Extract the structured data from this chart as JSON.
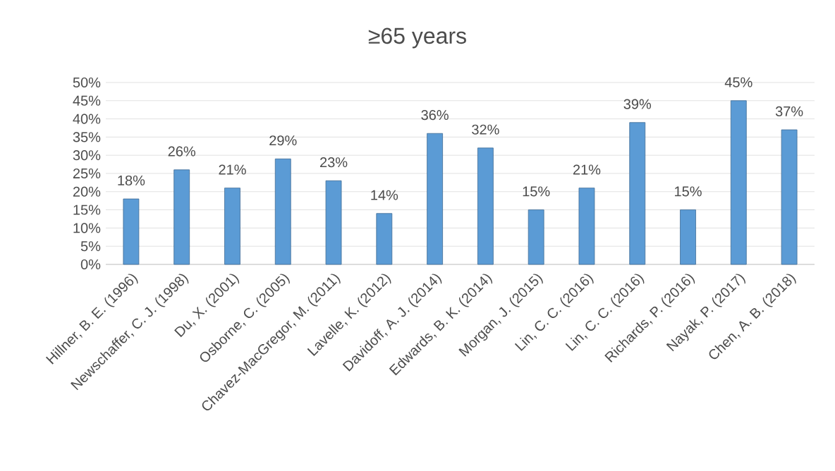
{
  "chart_data": {
    "type": "bar",
    "title": "≥65 years",
    "categories": [
      "Hillner, B. E. (1996)",
      "Newschaffer, C. J. (1998)",
      "Du, X. (2001)",
      "Osborne, C. (2005)",
      "Chavez-MacGregor, M. (2011)",
      "Lavelle, K. (2012)",
      "Davidoff, A. J. (2014)",
      "Edwards, B. K. (2014)",
      "Morgan, J. (2015)",
      "Lin, C. C. (2016)",
      "Lin, C. C. (2016)",
      "Richards, P. (2016)",
      "Nayak, P. (2017)",
      "Chen, A. B. (2018)"
    ],
    "values": [
      18,
      26,
      21,
      29,
      23,
      14,
      36,
      32,
      15,
      21,
      39,
      15,
      45,
      37
    ],
    "value_labels": [
      "18%",
      "26%",
      "21%",
      "29%",
      "23%",
      "14%",
      "36%",
      "32%",
      "15%",
      "21%",
      "39%",
      "15%",
      "45%",
      "37%"
    ],
    "color": "#5b9bd5",
    "ylim": [
      0,
      50
    ],
    "yticks": [
      {
        "value": 0,
        "label": "0%"
      },
      {
        "value": 5,
        "label": "5%"
      },
      {
        "value": 10,
        "label": "10%"
      },
      {
        "value": 15,
        "label": "15%"
      },
      {
        "value": 20,
        "label": "20%"
      },
      {
        "value": 25,
        "label": "25%"
      },
      {
        "value": 30,
        "label": "30%"
      },
      {
        "value": 35,
        "label": "35%"
      },
      {
        "value": 40,
        "label": "40%"
      },
      {
        "value": 45,
        "label": "45%"
      },
      {
        "value": 50,
        "label": "50%"
      }
    ],
    "grid": "y"
  }
}
